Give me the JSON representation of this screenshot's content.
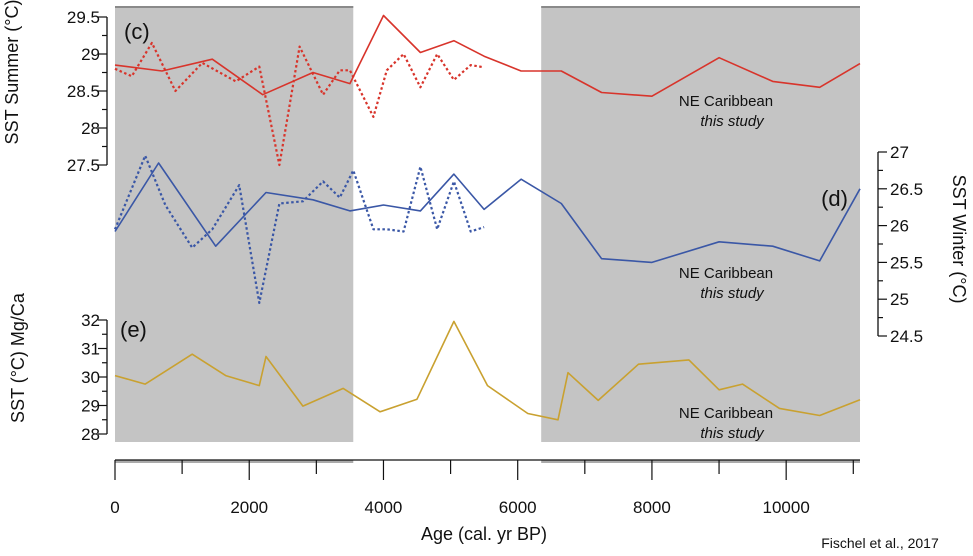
{
  "chart_data": [
    {
      "panel": "(c)",
      "type": "line",
      "ylabel": "SST Summer (°C)",
      "ylim": [
        27.5,
        29.5
      ],
      "yticks": [
        27.5,
        28,
        28.5,
        29,
        29.5
      ],
      "color": "#d8342b",
      "annotation": "NE Caribbean",
      "annotation_sub": "this study",
      "series": [
        {
          "style": "solid",
          "x": [
            0,
            700,
            1450,
            2200,
            2950,
            3500,
            4000,
            4550,
            5050,
            5500,
            6050,
            6650,
            7250,
            8000,
            9000,
            9800,
            10500,
            11100
          ],
          "y": [
            28.85,
            28.77,
            28.93,
            28.45,
            28.75,
            28.6,
            29.52,
            29.02,
            29.18,
            28.97,
            28.77,
            28.77,
            28.48,
            28.43,
            28.95,
            28.63,
            28.55,
            28.87
          ]
        },
        {
          "style": "dotted",
          "x": [
            0,
            250,
            550,
            900,
            1300,
            1800,
            2150,
            2450,
            2750,
            3100,
            3350,
            3500,
            3850,
            4050,
            4300,
            4550,
            4800,
            5050,
            5300,
            5500
          ],
          "y": [
            28.8,
            28.7,
            29.15,
            28.5,
            28.88,
            28.63,
            28.83,
            27.5,
            29.1,
            28.45,
            28.78,
            28.78,
            28.15,
            28.78,
            29.0,
            28.55,
            29.0,
            28.65,
            28.85,
            28.82
          ]
        }
      ]
    },
    {
      "panel": "(d)",
      "type": "line",
      "ylabel": "SST Winter (°C)",
      "ylim": [
        24.5,
        27
      ],
      "yticks": [
        24.5,
        25,
        25.5,
        26,
        26.5,
        27
      ],
      "color": "#3a57a6",
      "annotation": "NE Caribbean",
      "annotation_sub": "this study",
      "series": [
        {
          "style": "solid",
          "x": [
            0,
            650,
            1500,
            2250,
            2950,
            3500,
            4000,
            4550,
            5050,
            5500,
            6050,
            6650,
            7250,
            8000,
            9000,
            9800,
            10500,
            11100
          ],
          "y": [
            25.92,
            26.85,
            25.72,
            26.45,
            26.35,
            26.2,
            26.28,
            26.2,
            26.7,
            26.22,
            26.63,
            26.3,
            25.55,
            25.5,
            25.78,
            25.72,
            25.52,
            26.5
          ]
        },
        {
          "style": "dotted",
          "x": [
            0,
            450,
            750,
            1150,
            1450,
            1850,
            2150,
            2450,
            2800,
            3100,
            3350,
            3550,
            3850,
            4050,
            4300,
            4550,
            4800,
            5050,
            5300,
            5500
          ],
          "y": [
            25.95,
            26.95,
            26.28,
            25.7,
            25.95,
            26.55,
            24.95,
            26.3,
            26.33,
            26.6,
            26.38,
            26.75,
            25.95,
            25.95,
            25.92,
            26.8,
            25.95,
            26.6,
            25.92,
            25.98
          ]
        }
      ]
    },
    {
      "panel": "(e)",
      "type": "line",
      "ylabel": "SST (°C)  Mg/Ca",
      "ylim": [
        28,
        32
      ],
      "yticks": [
        28,
        29,
        30,
        31,
        32
      ],
      "color": "#c9a130",
      "annotation": "NE Caribbean",
      "annotation_sub": "this study",
      "series": [
        {
          "style": "solid",
          "x": [
            0,
            450,
            1150,
            1650,
            2150,
            2250,
            2800,
            3400,
            3950,
            4500,
            5050,
            5550,
            6150,
            6600,
            6750,
            7200,
            7800,
            8550,
            9000,
            9350,
            9900,
            10500,
            11100
          ],
          "y": [
            30.05,
            29.75,
            30.8,
            30.05,
            29.7,
            30.72,
            28.98,
            29.6,
            28.78,
            29.22,
            31.95,
            29.7,
            28.72,
            28.5,
            30.15,
            29.18,
            30.45,
            30.6,
            29.55,
            29.75,
            28.9,
            28.65,
            29.2
          ]
        }
      ]
    }
  ],
  "x_axis": {
    "label": "Age (cal. yr BP)",
    "xlim": [
      0,
      11100
    ],
    "ticks": [
      0,
      2000,
      4000,
      6000,
      8000,
      10000
    ],
    "tick_labels": [
      "0",
      "2000",
      "4000",
      "6000",
      "8000",
      "10000"
    ]
  },
  "shading": [
    [
      0,
      3550
    ],
    [
      6350,
      11100
    ]
  ],
  "shading_color": "#c4c4c4",
  "credit": "Fischel et al., 2017"
}
